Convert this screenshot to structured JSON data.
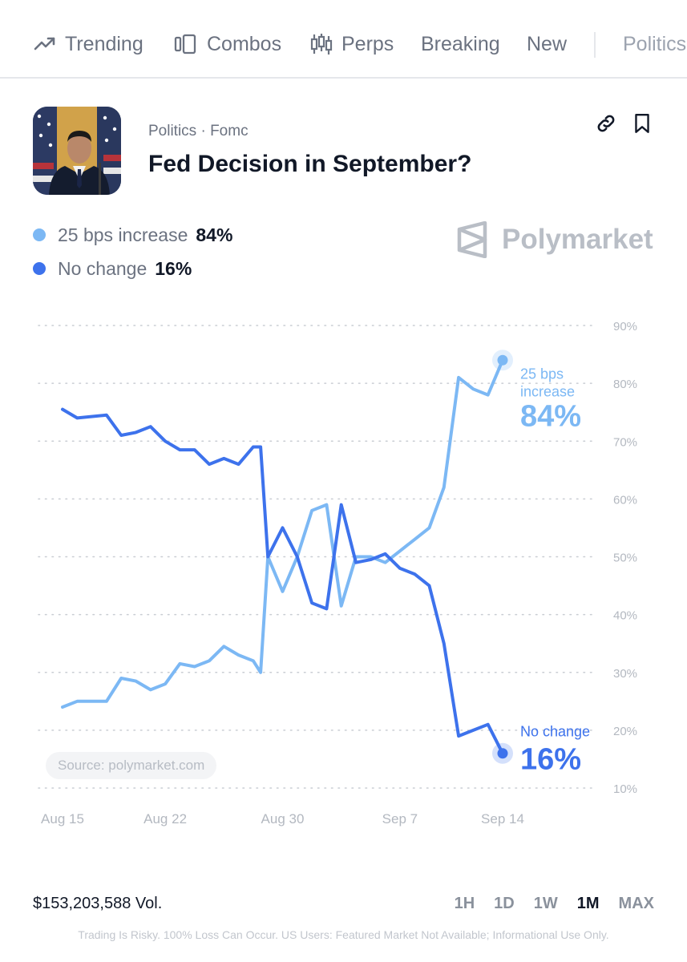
{
  "nav": {
    "items": [
      {
        "label": "Trending",
        "icon": "trending-icon"
      },
      {
        "label": "Combos",
        "icon": "combos-icon"
      },
      {
        "label": "Perps",
        "icon": "candlestick-icon"
      },
      {
        "label": "Breaking",
        "icon": ""
      },
      {
        "label": "New",
        "icon": ""
      },
      {
        "label": "Politics",
        "icon": ""
      }
    ]
  },
  "market": {
    "breadcrumb": "Politics · Fomc",
    "title": "Fed Decision in September?"
  },
  "outcomes": [
    {
      "name": "25 bps increase",
      "pct": "84%",
      "color": "#7cb8f4"
    },
    {
      "name": "No change",
      "pct": "16%",
      "color": "#3d72ec"
    }
  ],
  "brand": {
    "name": "Polymarket"
  },
  "source": "Source: polymarket.com",
  "footer": {
    "volume": "$153,203,588 Vol.",
    "ranges": [
      "1H",
      "1D",
      "1W",
      "1M",
      "MAX"
    ],
    "active_range": "1M",
    "disclaimer": "Trading Is Risky. 100% Loss Can Occur. US Users: Featured Market Not Available; Informational Use Only."
  },
  "chart_data": {
    "type": "line",
    "x_tick_labels": [
      "Aug 15",
      "Aug 22",
      "Aug 30",
      "Sep 7",
      "Sep 14"
    ],
    "y_tick_labels": [
      "10%",
      "20%",
      "30%",
      "40%",
      "50%",
      "60%",
      "70%",
      "80%",
      "90%"
    ],
    "ylim": [
      10,
      90
    ],
    "grid": "horizontal dotted",
    "series": [
      {
        "name": "25 bps increase",
        "end_label_line1": "25 bps",
        "end_label_line2": "increase",
        "end_value": "84%",
        "color": "#7cb8f4",
        "points": [
          [
            "Aug 15",
            24
          ],
          [
            "Aug 16",
            25
          ],
          [
            "Aug 18",
            25
          ],
          [
            "Aug 19",
            29
          ],
          [
            "Aug 20",
            28.5
          ],
          [
            "Aug 21",
            27
          ],
          [
            "Aug 22",
            28
          ],
          [
            "Aug 23",
            31.5
          ],
          [
            "Aug 24",
            31
          ],
          [
            "Aug 25",
            32
          ],
          [
            "Aug 26",
            34.5
          ],
          [
            "Aug 27",
            33
          ],
          [
            "Aug 28",
            32
          ],
          [
            "Aug 28.5",
            30
          ],
          [
            "Aug 29",
            50
          ],
          [
            "Aug 30",
            44
          ],
          [
            "Aug 31",
            50
          ],
          [
            "Sep 1",
            58
          ],
          [
            "Sep 2",
            59
          ],
          [
            "Sep 3",
            41.5
          ],
          [
            "Sep 4",
            50
          ],
          [
            "Sep 5",
            50
          ],
          [
            "Sep 6",
            49
          ],
          [
            "Sep 7",
            51
          ],
          [
            "Sep 8",
            53
          ],
          [
            "Sep 9",
            55
          ],
          [
            "Sep 10",
            62
          ],
          [
            "Sep 11",
            81
          ],
          [
            "Sep 12",
            79
          ],
          [
            "Sep 13",
            78
          ],
          [
            "Sep 14",
            84
          ]
        ]
      },
      {
        "name": "No change",
        "end_label_line1": "No change",
        "end_value": "16%",
        "color": "#3d72ec",
        "points": [
          [
            "Aug 15",
            75.5
          ],
          [
            "Aug 16",
            74
          ],
          [
            "Aug 18",
            74.5
          ],
          [
            "Aug 19",
            71
          ],
          [
            "Aug 20",
            71.5
          ],
          [
            "Aug 21",
            72.5
          ],
          [
            "Aug 22",
            70
          ],
          [
            "Aug 23",
            68.5
          ],
          [
            "Aug 24",
            68.5
          ],
          [
            "Aug 25",
            66
          ],
          [
            "Aug 26",
            67
          ],
          [
            "Aug 27",
            66
          ],
          [
            "Aug 28",
            69
          ],
          [
            "Aug 28.5",
            69
          ],
          [
            "Aug 29",
            50
          ],
          [
            "Aug 30",
            55
          ],
          [
            "Aug 31",
            50
          ],
          [
            "Sep 1",
            42
          ],
          [
            "Sep 2",
            41
          ],
          [
            "Sep 3",
            59
          ],
          [
            "Sep 4",
            49
          ],
          [
            "Sep 5",
            49.5
          ],
          [
            "Sep 6",
            50.5
          ],
          [
            "Sep 7",
            48
          ],
          [
            "Sep 8",
            47
          ],
          [
            "Sep 9",
            45
          ],
          [
            "Sep 10",
            35
          ],
          [
            "Sep 11",
            19
          ],
          [
            "Sep 12",
            20
          ],
          [
            "Sep 13",
            21
          ],
          [
            "Sep 14",
            16
          ]
        ]
      }
    ]
  }
}
